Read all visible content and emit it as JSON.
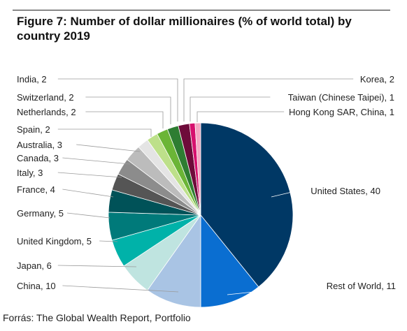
{
  "title": "Figure 7: Number of dollar millionaires (% of world total) by country 2019",
  "source": "Forrás: The Global Wealth Report, Portfolio",
  "chart_data": {
    "type": "pie",
    "title": "Figure 7: Number of dollar millionaires (% of world total) by country 2019",
    "unit": "% of world total",
    "slices": [
      {
        "name": "United States",
        "value": 40,
        "label": "United States, 40",
        "color": "#003865"
      },
      {
        "name": "Rest of World",
        "value": 11,
        "label": "Rest of World, 11",
        "color": "#0a6ed1"
      },
      {
        "name": "China",
        "value": 10,
        "label": "China, 10",
        "color": "#a9c4e4"
      },
      {
        "name": "Japan",
        "value": 6,
        "label": "Japan, 6",
        "color": "#bfe4e0"
      },
      {
        "name": "United Kingdom",
        "value": 5,
        "label": "United Kingdom, 5",
        "color": "#00b2a9"
      },
      {
        "name": "Germany",
        "value": 5,
        "label": "Germany, 5",
        "color": "#007a7a"
      },
      {
        "name": "France",
        "value": 4,
        "label": "France, 4",
        "color": "#005258"
      },
      {
        "name": "Italy",
        "value": 3,
        "label": "Italy, 3",
        "color": "#555555"
      },
      {
        "name": "Canada",
        "value": 3,
        "label": "Canada, 3",
        "color": "#8c8c8c"
      },
      {
        "name": "Australia",
        "value": 3,
        "label": "Australia, 3",
        "color": "#bcbcbc"
      },
      {
        "name": "Spain",
        "value": 2,
        "label": "Spain, 2",
        "color": "#e4e4e4"
      },
      {
        "name": "Netherlands",
        "value": 2,
        "label": "Netherlands, 2",
        "color": "#bde08a"
      },
      {
        "name": "Switzerland",
        "value": 2,
        "label": "Switzerland, 2",
        "color": "#6bb536"
      },
      {
        "name": "India",
        "value": 2,
        "label": "India, 2",
        "color": "#2e7d32"
      },
      {
        "name": "Korea",
        "value": 2,
        "label": "Korea, 2",
        "color": "#6e0b3a"
      },
      {
        "name": "Taiwan (Chinese Taipei)",
        "value": 1,
        "label": "Taiwan (Chinese Taipei), 1",
        "color": "#d6106e"
      },
      {
        "name": "Hong Kong SAR, China",
        "value": 1,
        "label": "Hong Kong SAR, China, 1",
        "color": "#f4a7c3"
      }
    ]
  }
}
